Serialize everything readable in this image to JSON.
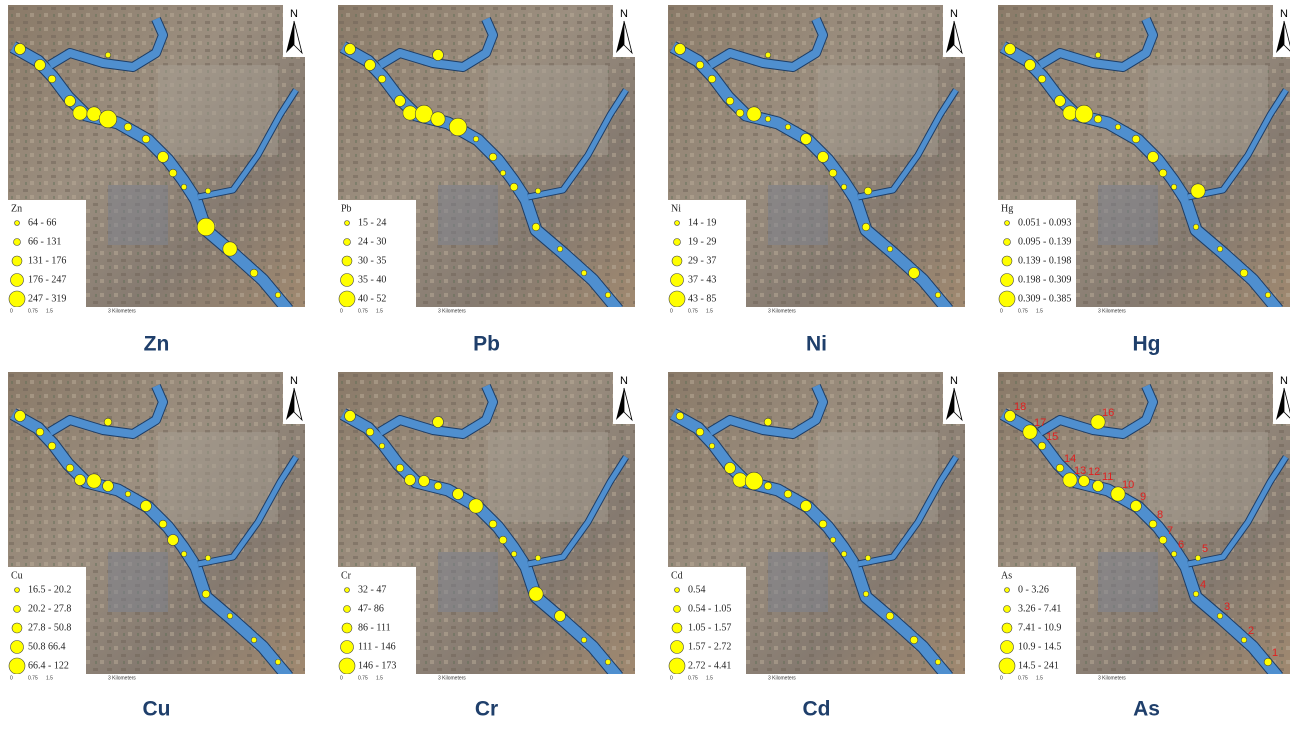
{
  "north": "N",
  "scale_labels": [
    "0",
    "0.75",
    "1.5",
    "3 Kilometers"
  ],
  "panels": [
    {
      "label": "Zn",
      "legend_title": "Zn",
      "legend": [
        "64 - 66",
        "66 - 131",
        "131 - 176",
        "176 - 247",
        "247 - 319"
      ]
    },
    {
      "label": "Pb",
      "legend_title": "Pb",
      "legend": [
        "15 - 24",
        "24 - 30",
        "30 - 35",
        "35 - 40",
        "40 - 52"
      ]
    },
    {
      "label": "Ni",
      "legend_title": "Ni",
      "legend": [
        "14 - 19",
        "19 - 29",
        "29 - 37",
        "37 - 43",
        "43 - 85"
      ]
    },
    {
      "label": "Hg",
      "legend_title": "Hg",
      "legend": [
        "0.051 - 0.093",
        "0.095 - 0.139",
        "0.139 - 0.198",
        "0.198 - 0.309",
        "0.309 - 0.385"
      ]
    },
    {
      "label": "Cu",
      "legend_title": "Cu",
      "legend": [
        "16.5 - 20.2",
        "20.2 - 27.8",
        "27.8 - 50.8",
        "50.8 66.4",
        "66.4 - 122"
      ]
    },
    {
      "label": "Cr",
      "legend_title": "Cr",
      "legend": [
        "32 - 47",
        "47- 86",
        "86 - 111",
        "111 - 146",
        "146 - 173"
      ]
    },
    {
      "label": "Cd",
      "legend_title": "Cd",
      "legend": [
        "0.54",
        "0.54 - 1.05",
        "1.05 - 1.57",
        "1.57 - 2.72",
        "2.72 - 4.41"
      ]
    },
    {
      "label": "As",
      "legend_title": "As",
      "legend": [
        "0 - 3.26",
        "3.26 - 7.41",
        "7.41 - 10.9",
        "10.9 - 14.5",
        "14.5 - 241"
      ],
      "site_labels": [
        "18",
        "17",
        "16",
        "15",
        "14",
        "13",
        "12",
        "11",
        "10",
        "9",
        "8",
        "7",
        "6",
        "5",
        "4",
        "3",
        "2",
        "1"
      ]
    }
  ]
}
